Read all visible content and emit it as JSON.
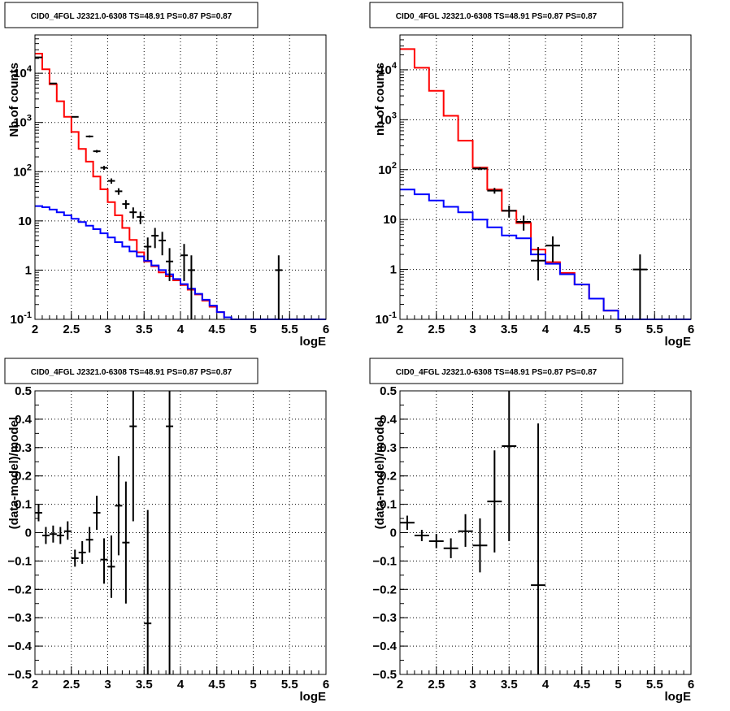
{
  "colors": {
    "model_total": "#ff0000",
    "background": "#0000ff",
    "data": "#000000"
  },
  "chart_data": [
    {
      "type": "line",
      "panel": "top-left",
      "title": "CID0_4FGL J2321.0-6308 TS=48.91 PS=0.87 PS=0.87",
      "xlabel": "logE",
      "ylabel": "Nb of counts",
      "log_y": true,
      "xlim": [
        2,
        6
      ],
      "ylim": [
        0.1,
        60000
      ],
      "grid": true,
      "x_ticks": [
        "2",
        "2.5",
        "3",
        "3.5",
        "4",
        "4.5",
        "5",
        "5.5",
        "6"
      ],
      "y_ticks": [
        [
          "10^-1",
          0.1
        ],
        [
          "1",
          1
        ],
        [
          "10",
          10
        ],
        [
          "10^2",
          100
        ],
        [
          "10^3",
          1000
        ],
        [
          "10^4",
          10000
        ]
      ],
      "bin_edges": [
        2.0,
        2.1,
        2.2,
        2.3,
        2.4,
        2.5,
        2.6,
        2.7,
        2.8,
        2.9,
        3.0,
        3.1,
        3.2,
        3.3,
        3.4,
        3.5,
        3.6,
        3.7,
        3.8,
        3.9,
        4.0,
        4.1,
        4.2,
        4.3,
        4.4,
        4.5,
        4.6,
        4.7,
        4.8,
        4.9,
        5.0,
        5.1,
        5.2,
        5.3,
        5.4,
        5.5,
        5.6,
        5.7,
        5.8,
        5.9,
        6.0
      ],
      "series": [
        {
          "role": "model_total",
          "values": [
            25000,
            12000,
            6000,
            2700,
            1300,
            640,
            290,
            160,
            80,
            44,
            24,
            13,
            7.2,
            4.1,
            2.3,
            1.5,
            1.2,
            0.9,
            0.75,
            0.62,
            0.5,
            0.4,
            0.32,
            0.24,
            0.18,
            0.14,
            0.11,
            0.1,
            0.1,
            0.1,
            0.1,
            0.1,
            0.1,
            0.1,
            0.1,
            0.1,
            0.1,
            0.1,
            0.1,
            0.1
          ]
        },
        {
          "role": "background",
          "values": [
            20,
            19,
            17,
            15,
            13,
            11,
            9.5,
            8,
            6.8,
            5.6,
            4.6,
            3.7,
            3.0,
            2.4,
            1.9,
            1.55,
            1.25,
            1.0,
            0.82,
            0.66,
            0.52,
            0.42,
            0.33,
            0.25,
            0.19,
            0.14,
            0.11,
            0.1,
            0.1,
            0.1,
            0.1,
            0.1,
            0.1,
            0.1,
            0.1,
            0.1,
            0.1,
            0.1,
            0.1,
            0.1
          ]
        }
      ],
      "points": [
        {
          "x": 2.05,
          "y": 21000,
          "ylo": 20500,
          "yhi": 21500
        },
        {
          "x": 2.25,
          "y": 6200,
          "ylo": 6100,
          "yhi": 6300
        },
        {
          "x": 2.55,
          "y": 1300,
          "ylo": 1260,
          "yhi": 1340
        },
        {
          "x": 2.75,
          "y": 520,
          "ylo": 495,
          "yhi": 545
        },
        {
          "x": 2.85,
          "y": 260,
          "ylo": 244,
          "yhi": 276
        },
        {
          "x": 2.95,
          "y": 120,
          "ylo": 109,
          "yhi": 131
        },
        {
          "x": 3.05,
          "y": 65,
          "ylo": 57,
          "yhi": 73
        },
        {
          "x": 3.15,
          "y": 40,
          "ylo": 34,
          "yhi": 46
        },
        {
          "x": 3.25,
          "y": 22,
          "ylo": 17.5,
          "yhi": 26.5
        },
        {
          "x": 3.35,
          "y": 15,
          "ylo": 11.2,
          "yhi": 18.8
        },
        {
          "x": 3.45,
          "y": 12,
          "ylo": 8.6,
          "yhi": 15.4
        },
        {
          "x": 3.55,
          "y": 3,
          "ylo": 1.6,
          "yhi": 4.6
        },
        {
          "x": 3.65,
          "y": 5,
          "ylo": 2.8,
          "yhi": 7.2
        },
        {
          "x": 3.75,
          "y": 4,
          "ylo": 2.0,
          "yhi": 6.0
        },
        {
          "x": 3.85,
          "y": 1.5,
          "ylo": 0.6,
          "yhi": 2.8
        },
        {
          "x": 4.05,
          "y": 2,
          "ylo": 0.6,
          "yhi": 3.4
        },
        {
          "x": 4.15,
          "y": 1,
          "ylo": 0.1,
          "yhi": 2.0
        },
        {
          "x": 5.35,
          "y": 1,
          "ylo": 0.1,
          "yhi": 2.0
        }
      ]
    },
    {
      "type": "line",
      "panel": "top-right",
      "title": "CID0_4FGL J2321.0-6308 TS=48.91 PS=0.87 PS=0.87",
      "xlabel": "logE",
      "ylabel": "nb of counts",
      "log_y": true,
      "xlim": [
        2,
        6
      ],
      "ylim": [
        0.1,
        50000
      ],
      "grid": true,
      "x_ticks": [
        "2",
        "2.5",
        "3",
        "3.5",
        "4",
        "4.5",
        "5",
        "5.5",
        "6"
      ],
      "y_ticks": [
        [
          "10^-1",
          0.1
        ],
        [
          "1",
          1
        ],
        [
          "10",
          10
        ],
        [
          "10^2",
          100
        ],
        [
          "10^3",
          1000
        ],
        [
          "10^4",
          10000
        ]
      ],
      "bin_edges": [
        2.0,
        2.2,
        2.4,
        2.6,
        2.8,
        3.0,
        3.2,
        3.4,
        3.6,
        3.8,
        4.0,
        4.2,
        4.4,
        4.6,
        4.8,
        5.0,
        5.2,
        5.4,
        5.6,
        5.8,
        6.0
      ],
      "series": [
        {
          "role": "model_total",
          "values": [
            26000,
            11000,
            3800,
            1200,
            380,
            110,
            40,
            15,
            8.5,
            2.5,
            1.4,
            0.85,
            0.5,
            0.26,
            0.15,
            0.1,
            0.1,
            0.1,
            0.1,
            0.1
          ]
        },
        {
          "role": "background",
          "values": [
            40,
            32,
            24,
            18,
            14,
            10,
            7.0,
            4.8,
            4.2,
            2.0,
            1.3,
            0.8,
            0.5,
            0.26,
            0.15,
            0.1,
            0.1,
            0.1,
            0.1,
            0.1
          ]
        }
      ],
      "points": [
        {
          "x": 3.1,
          "y": 105,
          "ylo": 98,
          "yhi": 112
        },
        {
          "x": 3.3,
          "y": 38,
          "ylo": 33,
          "yhi": 43
        },
        {
          "x": 3.5,
          "y": 15,
          "ylo": 11,
          "yhi": 19
        },
        {
          "x": 3.7,
          "y": 9,
          "ylo": 6,
          "yhi": 12
        },
        {
          "x": 3.9,
          "y": 1.5,
          "ylo": 0.6,
          "yhi": 2.8
        },
        {
          "x": 4.1,
          "y": 3,
          "ylo": 1.4,
          "yhi": 4.6
        },
        {
          "x": 5.3,
          "y": 1,
          "ylo": 0.1,
          "yhi": 2.0
        }
      ]
    },
    {
      "type": "scatter",
      "panel": "bottom-left",
      "title": "CID0_4FGL J2321.0-6308 TS=48.91 PS=0.87 PS=0.87",
      "xlabel": "logE",
      "ylabel": "(data-model)/model",
      "log_y": false,
      "xlim": [
        2,
        6
      ],
      "ylim": [
        -0.5,
        0.5
      ],
      "grid": true,
      "x_ticks": [
        "2",
        "2.5",
        "3",
        "3.5",
        "4",
        "4.5",
        "5",
        "5.5",
        "6"
      ],
      "y_ticks": [
        [
          "−0.5",
          -0.5
        ],
        [
          "−0.4",
          -0.4
        ],
        [
          "−0.3",
          -0.3
        ],
        [
          "−0.2",
          -0.2
        ],
        [
          "−0.1",
          -0.1
        ],
        [
          "0",
          0
        ],
        [
          "0.1",
          0.1
        ],
        [
          "0.2",
          0.2
        ],
        [
          "0.3",
          0.3
        ],
        [
          "0.4",
          0.4
        ],
        [
          "0.5",
          0.5
        ]
      ],
      "xhalf": 0.05,
      "points": [
        {
          "x": 2.05,
          "y": 0.07,
          "ylo": 0.04,
          "yhi": 0.1
        },
        {
          "x": 2.15,
          "y": -0.01,
          "ylo": -0.04,
          "yhi": 0.02
        },
        {
          "x": 2.25,
          "y": -0.005,
          "ylo": -0.035,
          "yhi": 0.025
        },
        {
          "x": 2.35,
          "y": -0.01,
          "ylo": -0.04,
          "yhi": 0.02
        },
        {
          "x": 2.45,
          "y": 0.005,
          "ylo": -0.025,
          "yhi": 0.04
        },
        {
          "x": 2.55,
          "y": -0.09,
          "ylo": -0.12,
          "yhi": -0.06
        },
        {
          "x": 2.65,
          "y": -0.07,
          "ylo": -0.11,
          "yhi": -0.03
        },
        {
          "x": 2.75,
          "y": -0.025,
          "ylo": -0.07,
          "yhi": 0.02
        },
        {
          "x": 2.85,
          "y": 0.07,
          "ylo": 0.01,
          "yhi": 0.13
        },
        {
          "x": 2.95,
          "y": -0.095,
          "ylo": -0.18,
          "yhi": -0.02
        },
        {
          "x": 3.05,
          "y": -0.12,
          "ylo": -0.23,
          "yhi": -0.01
        },
        {
          "x": 3.15,
          "y": 0.095,
          "ylo": -0.08,
          "yhi": 0.27
        },
        {
          "x": 3.25,
          "y": -0.035,
          "ylo": -0.25,
          "yhi": 0.18
        },
        {
          "x": 3.35,
          "y": 0.375,
          "ylo": 0.04,
          "yhi": 0.5
        },
        {
          "x": 3.55,
          "y": -0.32,
          "ylo": -0.5,
          "yhi": 0.08
        },
        {
          "x": 3.85,
          "y": 0.375,
          "ylo": -0.5,
          "yhi": 0.5
        }
      ]
    },
    {
      "type": "scatter",
      "panel": "bottom-right",
      "title": "CID0_4FGL J2321.0-6308 TS=48.91 PS=0.87 PS=0.87",
      "xlabel": "logE",
      "ylabel": "(data-model)/model",
      "log_y": false,
      "xlim": [
        2,
        6
      ],
      "ylim": [
        -0.5,
        0.5
      ],
      "grid": true,
      "x_ticks": [
        "2",
        "2.5",
        "3",
        "3.5",
        "4",
        "4.5",
        "5",
        "5.5",
        "6"
      ],
      "y_ticks": [
        [
          "−0.5",
          -0.5
        ],
        [
          "−0.4",
          -0.4
        ],
        [
          "−0.3",
          -0.3
        ],
        [
          "−0.2",
          -0.2
        ],
        [
          "−0.1",
          -0.1
        ],
        [
          "0",
          0
        ],
        [
          "0.1",
          0.1
        ],
        [
          "0.2",
          0.2
        ],
        [
          "0.3",
          0.3
        ],
        [
          "0.4",
          0.4
        ],
        [
          "0.5",
          0.5
        ]
      ],
      "xhalf": 0.1,
      "points": [
        {
          "x": 2.1,
          "y": 0.035,
          "ylo": 0.01,
          "yhi": 0.06
        },
        {
          "x": 2.3,
          "y": -0.01,
          "ylo": -0.03,
          "yhi": 0.01
        },
        {
          "x": 2.5,
          "y": -0.03,
          "ylo": -0.055,
          "yhi": -0.005
        },
        {
          "x": 2.7,
          "y": -0.055,
          "ylo": -0.09,
          "yhi": -0.02
        },
        {
          "x": 2.9,
          "y": 0.005,
          "ylo": -0.05,
          "yhi": 0.065
        },
        {
          "x": 3.1,
          "y": -0.045,
          "ylo": -0.14,
          "yhi": 0.05
        },
        {
          "x": 3.3,
          "y": 0.11,
          "ylo": -0.07,
          "yhi": 0.29
        },
        {
          "x": 3.5,
          "y": 0.305,
          "ylo": -0.03,
          "yhi": 0.5
        },
        {
          "x": 3.9,
          "y": -0.185,
          "ylo": -0.5,
          "yhi": 0.385
        }
      ]
    }
  ]
}
